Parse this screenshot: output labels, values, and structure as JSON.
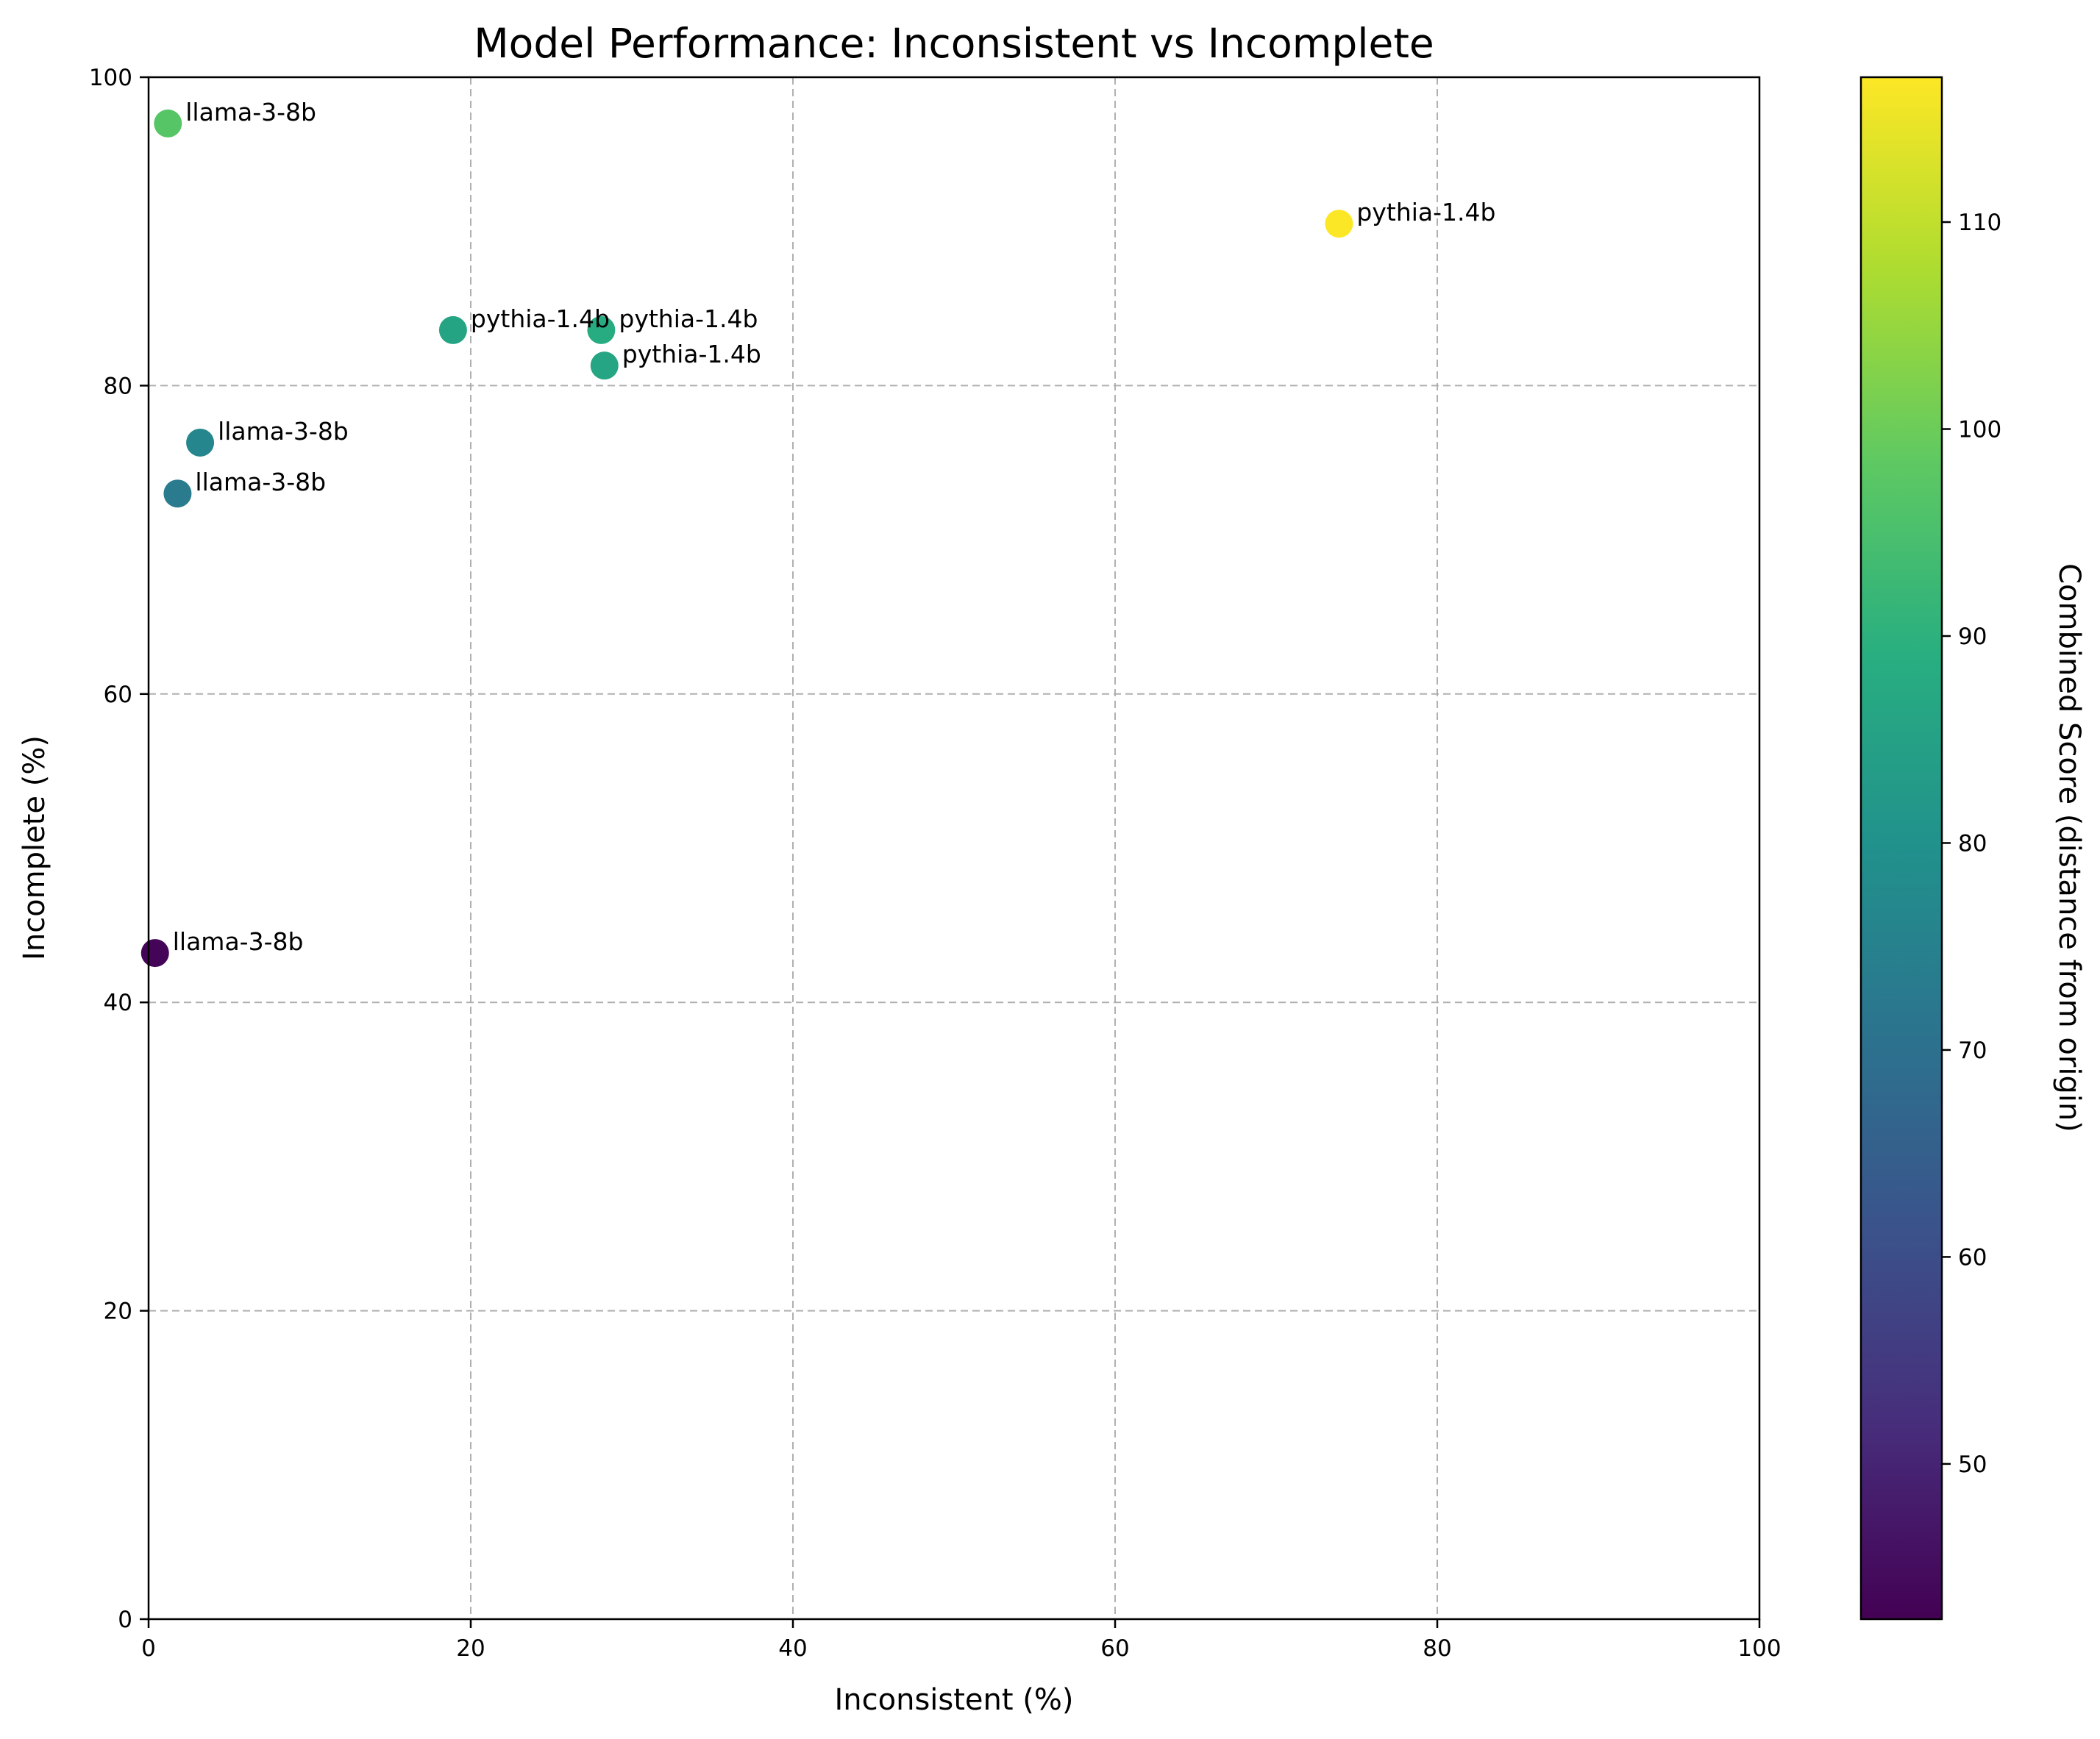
{
  "chart_data": {
    "type": "scatter",
    "title": "Model Performance: Inconsistent vs Incomplete",
    "xlabel": "Inconsistent (%)",
    "ylabel": "Incomplete (%)",
    "xlim": [
      0,
      100
    ],
    "ylim": [
      0,
      100
    ],
    "xticks": [
      "0",
      "20",
      "40",
      "60",
      "80",
      "100"
    ],
    "yticks": [
      "0",
      "20",
      "40",
      "60",
      "80",
      "100"
    ],
    "grid": true,
    "colormap": "viridis",
    "colorbar": {
      "label": "Combined Score (distance from origin)",
      "range": [
        42.5,
        117
      ],
      "ticks": [
        "50",
        "60",
        "70",
        "80",
        "90",
        "100",
        "110"
      ]
    },
    "points": [
      {
        "label": "llama-3-8b",
        "x": 1.2,
        "y": 97.0,
        "score": 97.0
      },
      {
        "label": "pythia-1.4b",
        "x": 73.9,
        "y": 90.5,
        "score": 116.8
      },
      {
        "label": "pythia-1.4b",
        "x": 18.9,
        "y": 83.6,
        "score": 85.7
      },
      {
        "label": "pythia-1.4b",
        "x": 28.1,
        "y": 83.6,
        "score": 88.2
      },
      {
        "label": "pythia-1.4b",
        "x": 28.3,
        "y": 81.3,
        "score": 86.1
      },
      {
        "label": "llama-3-8b",
        "x": 3.2,
        "y": 76.3,
        "score": 76.4
      },
      {
        "label": "llama-3-8b",
        "x": 1.8,
        "y": 73.0,
        "score": 73.0
      },
      {
        "label": "llama-3-8b",
        "x": 0.4,
        "y": 43.2,
        "score": 43.2
      }
    ]
  }
}
